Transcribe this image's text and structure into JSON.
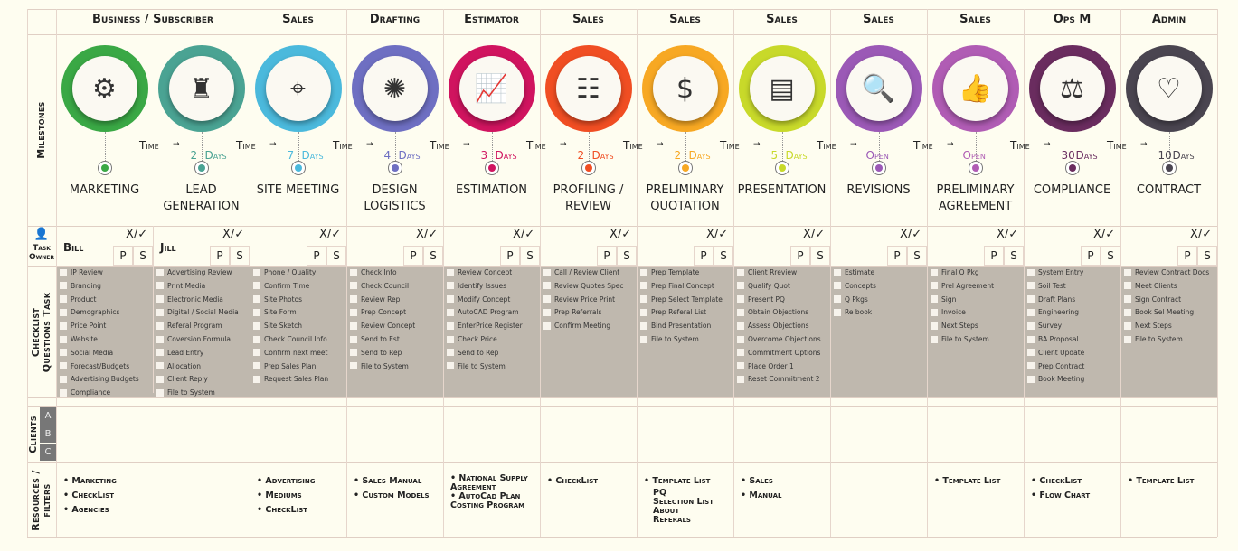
{
  "row_labels": {
    "milestones": "Milestones",
    "task_owner": "Task Owner",
    "checklist": "Checklist Questions Task",
    "clients": "Clients",
    "resources": "Resources / filters"
  },
  "time_label": "Time",
  "days_label": "Days",
  "roles": [
    {
      "label": "Business / Subscriber",
      "span": 2
    },
    {
      "label": "Sales",
      "span": 1
    },
    {
      "label": "Drafting",
      "span": 1
    },
    {
      "label": "Estimator",
      "span": 1
    },
    {
      "label": "Sales",
      "span": 1
    },
    {
      "label": "Sales",
      "span": 1
    },
    {
      "label": "Sales",
      "span": 1
    },
    {
      "label": "Sales",
      "span": 1
    },
    {
      "label": "Sales",
      "span": 1
    },
    {
      "label": "Ops M",
      "span": 1
    },
    {
      "label": "Admin",
      "span": 1
    }
  ],
  "client_badges": [
    "A",
    "B",
    "C"
  ],
  "ps": {
    "p": "P",
    "s": "S",
    "xcheck": "X/✓"
  },
  "milestones": [
    {
      "name": "Marketing",
      "color": "#3aa845",
      "icon": "gear-icon",
      "glyph": "⚙",
      "time": null,
      "unit": null,
      "owner": "Bill",
      "checklist": [
        "IP Review",
        "Branding",
        "Product",
        "Demographics",
        "Price Point",
        "Website",
        "Social Media",
        "Forecast/Budgets",
        "Advertising Budgets",
        "Compliance"
      ]
    },
    {
      "name": "Lead Generation",
      "color": "#4aa393",
      "icon": "chess-rook-icon",
      "glyph": "♜",
      "time": "2",
      "unit": "Days",
      "owner": "Jill",
      "checklist": [
        "Advertising Review",
        "Print Media",
        "Electronic Media",
        "Digital / Social Media",
        "Referal Program",
        "Coversion Formula",
        "Lead Entry",
        "Allocation",
        "Client Reply",
        "File to System"
      ]
    },
    {
      "name": "Site Meeting",
      "color": "#4bb9dc",
      "icon": "map-pin-icon",
      "glyph": "⌖",
      "time": "7",
      "unit": "Days",
      "owner": "",
      "checklist": [
        "Phone / Quality",
        "Confirm Time",
        "Site Photos",
        "Site Form",
        "Site Sketch",
        "Check Council Info",
        "Confirm next meet",
        "Prep Sales Plan",
        "Request Sales Plan"
      ]
    },
    {
      "name": "Design Logistics",
      "color": "#6e6fc2",
      "icon": "lightbulb-gear-icon",
      "glyph": "✺",
      "time": "4",
      "unit": "Days",
      "owner": "",
      "checklist": [
        "Check Info",
        "Check Council",
        "Review Rep",
        "Prep Concept",
        "Review Concept",
        "Send to Est",
        "Send to Rep",
        "File to System"
      ]
    },
    {
      "name": "Estimation",
      "color": "#d0145f",
      "icon": "line-chart-icon",
      "glyph": "📈",
      "time": "3",
      "unit": "Days",
      "owner": "",
      "checklist": [
        "Review Concept",
        "Identify Issues",
        "Modify Concept",
        "AutoCAD Program",
        "EnterPrice Register",
        "Check Price",
        "Send to Rep",
        "File to System"
      ]
    },
    {
      "name": "Profiling / Review",
      "color": "#f04e23",
      "icon": "settings-panel-icon",
      "glyph": "☷",
      "time": "2",
      "unit": "Days",
      "owner": "",
      "checklist": [
        "Call / Review Client",
        "Review Quotes Spec",
        "Review Price Print",
        "Prep Referrals",
        "Confirm Meeting"
      ]
    },
    {
      "name": "Preliminary Quotation",
      "color": "#f7a823",
      "icon": "money-exchange-icon",
      "glyph": "$",
      "time": "2",
      "unit": "Days",
      "owner": "",
      "checklist": [
        "Prep Template",
        "Prep Final Concept",
        "Prep Select Template",
        "Prep Referal List",
        "Bind Presentation",
        "File to System"
      ]
    },
    {
      "name": "Presentation",
      "color": "#c8d92a",
      "icon": "presentation-board-icon",
      "glyph": "▤",
      "time": "5",
      "unit": "Days",
      "owner": "",
      "checklist": [
        "Client Rreview",
        "Qualify Quot",
        "Present  PQ",
        "Obtain Objections",
        "Assess Objections",
        "Overcome Objections",
        "Commitment Options",
        "Place Order 1",
        "Reset Commitment 2"
      ]
    },
    {
      "name": "Revisions",
      "color": "#9b59b6",
      "icon": "search-image-icon",
      "glyph": "🔍",
      "time": "Open",
      "unit": null,
      "owner": "",
      "checklist": [
        "Estimate",
        "Concepts",
        "Q Pkgs",
        "Re book"
      ]
    },
    {
      "name": "Preliminary Agreement",
      "color": "#b05cb4",
      "icon": "thumbs-up-document-icon",
      "glyph": "👍",
      "time": "Open",
      "unit": null,
      "owner": "",
      "checklist": [
        "Final Q Pkg",
        "Prel Agreement",
        "Sign",
        "Invoice",
        "Next Steps",
        "File to System"
      ]
    },
    {
      "name": "Compliance",
      "color": "#6a2c5f",
      "icon": "gavel-icon",
      "glyph": "⚖",
      "time": "30",
      "unit": "Days",
      "owner": "",
      "checklist": [
        "System Entry",
        "Soil Test",
        "Draft Plans",
        "Engineering",
        "Survey",
        "BA Proposal",
        "Client Update",
        "Prep Contract",
        "Book Meeting"
      ]
    },
    {
      "name": "Contract",
      "color": "#4a4550",
      "icon": "handshake-heart-icon",
      "glyph": "♡",
      "time": "10",
      "unit": "Days",
      "owner": "",
      "checklist": [
        "Review Contract Docs",
        "Meet Clients",
        "Sign Contract",
        "Book Sel Meeting",
        "Next Steps",
        "File to System"
      ]
    }
  ],
  "resources": [
    {
      "col": 0,
      "items": [
        "Marketing",
        "CheckList",
        "Agencies"
      ]
    },
    {
      "col": 2,
      "items": [
        "Advertising",
        "Mediums",
        "CheckList"
      ]
    },
    {
      "col": 3,
      "items": [
        "Sales Manual",
        "Custom Models"
      ]
    },
    {
      "col": 4,
      "items": [
        "National Supply Agreement",
        "AutoCad Plan Costing Program"
      ]
    },
    {
      "col": 5,
      "items": [
        "CheckList"
      ]
    },
    {
      "col": 6,
      "items": [
        "Template List"
      ],
      "sub": [
        "PQ",
        "Selection List",
        "About",
        "Referals"
      ]
    },
    {
      "col": 7,
      "items": [
        "Sales",
        "Manual"
      ]
    },
    {
      "col": 9,
      "items": [
        "Template List"
      ]
    },
    {
      "col": 10,
      "items": [
        "CheckList",
        "Flow Chart"
      ]
    },
    {
      "col": 11,
      "items": [
        "Template List"
      ]
    }
  ]
}
